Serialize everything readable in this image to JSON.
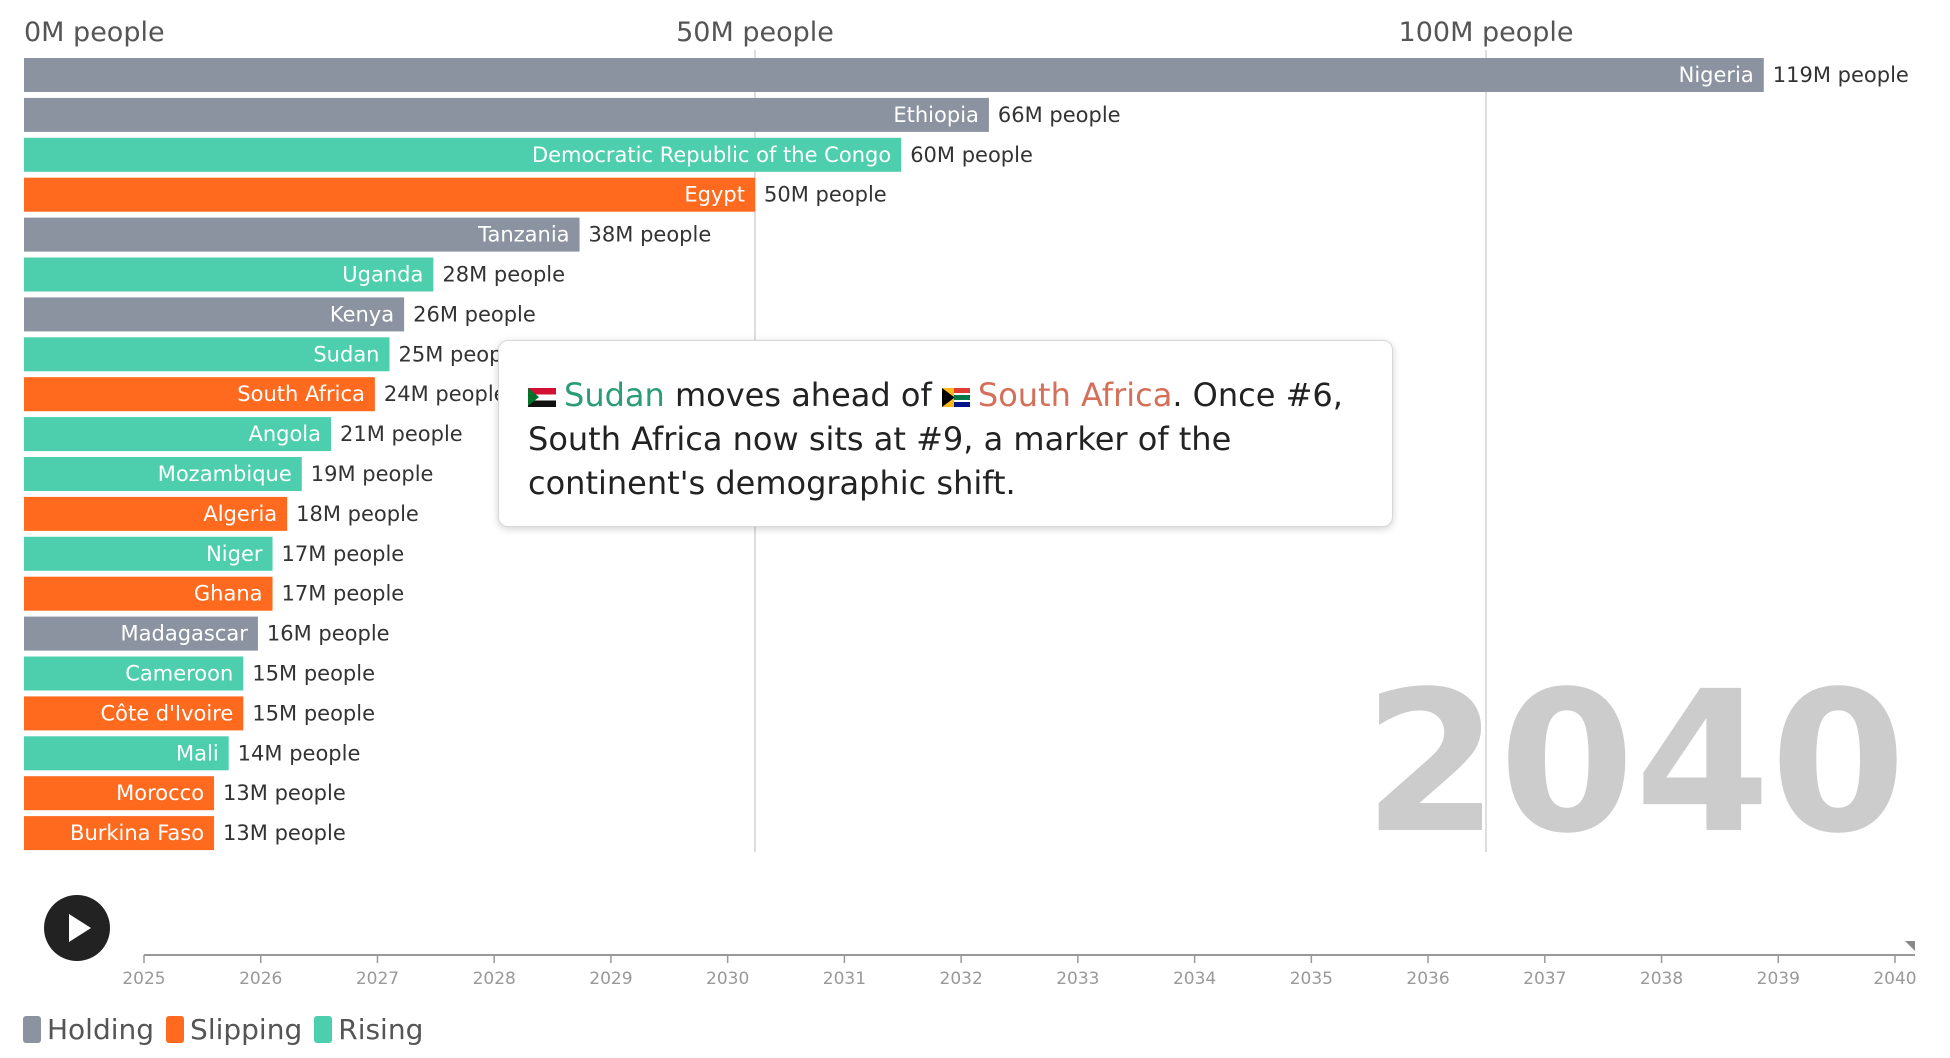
{
  "colors": {
    "holding": "#8a939f",
    "slipping": "#ff6a1f",
    "rising": "#4dcfae",
    "grid": "#d4d4d4",
    "year_watermark": "#cccccc"
  },
  "chart_data": {
    "type": "bar",
    "orientation": "horizontal",
    "x_ticks": [
      {
        "value": 0,
        "label": "0M people"
      },
      {
        "value": 50,
        "label": "50M people"
      },
      {
        "value": 100,
        "label": "100M people"
      }
    ],
    "xlim": [
      0,
      123
    ],
    "unit_suffix": "M people",
    "grid": true,
    "bars": [
      {
        "category": "Nigeria",
        "value": 119,
        "value_label": "119M people",
        "status": "holding"
      },
      {
        "category": "Ethiopia",
        "value": 66,
        "value_label": "66M people",
        "status": "holding"
      },
      {
        "category": "Democratic Republic of the Congo",
        "value": 60,
        "value_label": "60M people",
        "status": "rising"
      },
      {
        "category": "Egypt",
        "value": 50,
        "value_label": "50M people",
        "status": "slipping"
      },
      {
        "category": "Tanzania",
        "value": 38,
        "value_label": "38M people",
        "status": "holding"
      },
      {
        "category": "Uganda",
        "value": 28,
        "value_label": "28M people",
        "status": "rising"
      },
      {
        "category": "Kenya",
        "value": 26,
        "value_label": "26M people",
        "status": "holding"
      },
      {
        "category": "Sudan",
        "value": 25,
        "value_label": "25M people",
        "status": "rising"
      },
      {
        "category": "South Africa",
        "value": 24,
        "value_label": "24M people",
        "status": "slipping"
      },
      {
        "category": "Angola",
        "value": 21,
        "value_label": "21M people",
        "status": "rising"
      },
      {
        "category": "Mozambique",
        "value": 19,
        "value_label": "19M people",
        "status": "rising"
      },
      {
        "category": "Algeria",
        "value": 18,
        "value_label": "18M people",
        "status": "slipping"
      },
      {
        "category": "Niger",
        "value": 17,
        "value_label": "17M people",
        "status": "rising"
      },
      {
        "category": "Ghana",
        "value": 17,
        "value_label": "17M people",
        "status": "slipping"
      },
      {
        "category": "Madagascar",
        "value": 16,
        "value_label": "16M people",
        "status": "holding"
      },
      {
        "category": "Cameroon",
        "value": 15,
        "value_label": "15M people",
        "status": "rising"
      },
      {
        "category": "Côte d'Ivoire",
        "value": 15,
        "value_label": "15M people",
        "status": "slipping"
      },
      {
        "category": "Mali",
        "value": 14,
        "value_label": "14M people",
        "status": "rising"
      },
      {
        "category": "Morocco",
        "value": 13,
        "value_label": "13M people",
        "status": "slipping"
      },
      {
        "category": "Burkina Faso",
        "value": 13,
        "value_label": "13M people",
        "status": "slipping"
      }
    ],
    "current_year": "2040",
    "timeline": {
      "years": [
        "2025",
        "2026",
        "2027",
        "2028",
        "2029",
        "2030",
        "2031",
        "2032",
        "2033",
        "2034",
        "2035",
        "2036",
        "2037",
        "2038",
        "2039",
        "2040"
      ],
      "current": "2040"
    },
    "legend": [
      {
        "key": "holding",
        "label": "Holding"
      },
      {
        "key": "slipping",
        "label": "Slipping"
      },
      {
        "key": "rising",
        "label": "Rising"
      }
    ]
  },
  "annotation": {
    "country_a": "Sudan",
    "text_1": " moves ahead of ",
    "country_b": "South Africa",
    "text_2": ". Once #6, South Africa now sits at #9, a marker of the continent's demographic shift."
  },
  "controls": {
    "play_icon": "play-icon"
  }
}
